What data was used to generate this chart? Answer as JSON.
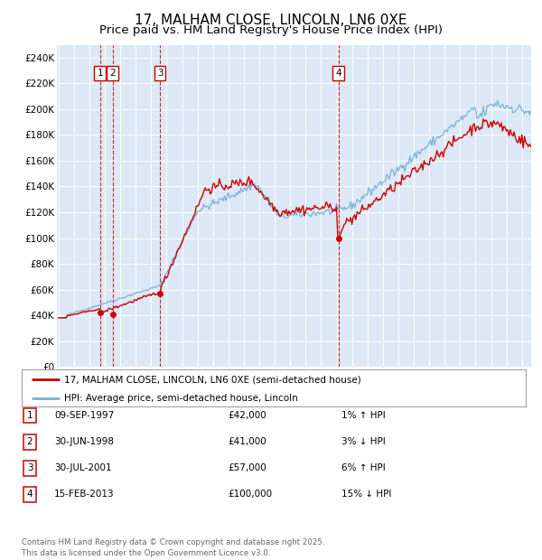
{
  "title": "17, MALHAM CLOSE, LINCOLN, LN6 0XE",
  "subtitle": "Price paid vs. HM Land Registry's House Price Index (HPI)",
  "title_fontsize": 11,
  "subtitle_fontsize": 9.5,
  "background_color": "#ffffff",
  "chart_bg_color": "#dce8f5",
  "grid_color": "#ffffff",
  "ylim": [
    0,
    250000
  ],
  "yticks": [
    0,
    20000,
    40000,
    60000,
    80000,
    100000,
    120000,
    140000,
    160000,
    180000,
    200000,
    220000,
    240000
  ],
  "xlim_start": 1994.9,
  "xlim_end": 2025.6,
  "transactions": [
    {
      "num": 1,
      "date_str": "09-SEP-1997",
      "year": 1997.69,
      "price": 42000,
      "pct": "1%",
      "dir": "↑"
    },
    {
      "num": 2,
      "date_str": "30-JUN-1998",
      "year": 1998.5,
      "price": 41000,
      "pct": "3%",
      "dir": "↓"
    },
    {
      "num": 3,
      "date_str": "30-JUL-2001",
      "year": 2001.58,
      "price": 57000,
      "pct": "6%",
      "dir": "↑"
    },
    {
      "num": 4,
      "date_str": "15-FEB-2013",
      "year": 2013.12,
      "price": 100000,
      "pct": "15%",
      "dir": "↓"
    }
  ],
  "transaction_color": "#cc0000",
  "dashed_line_color": "#cc0000",
  "hpi_line_color": "#7aafd4",
  "price_line_color": "#cc0000",
  "legend_label_price": "17, MALHAM CLOSE, LINCOLN, LN6 0XE (semi-detached house)",
  "legend_label_hpi": "HPI: Average price, semi-detached house, Lincoln",
  "footer_text": "Contains HM Land Registry data © Crown copyright and database right 2025.\nThis data is licensed under the Open Government Licence v3.0.",
  "table_rows": [
    [
      "1",
      "09-SEP-1997",
      "£42,000",
      "1% ↑ HPI"
    ],
    [
      "2",
      "30-JUN-1998",
      "£41,000",
      "3% ↓ HPI"
    ],
    [
      "3",
      "30-JUL-2001",
      "£57,000",
      "6% ↑ HPI"
    ],
    [
      "4",
      "15-FEB-2013",
      "£100,000",
      "15% ↓ HPI"
    ]
  ]
}
